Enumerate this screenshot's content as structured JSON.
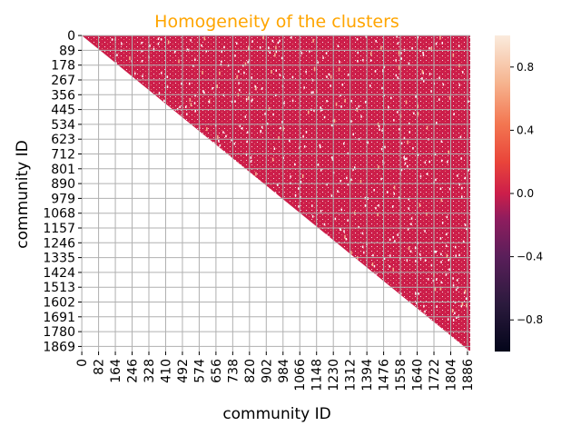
{
  "chart_data": {
    "type": "heatmap",
    "title": "Homogeneity of the clusters",
    "xlabel": "community ID",
    "ylabel": "community ID",
    "x_tick_labels": [
      "0",
      "82",
      "164",
      "246",
      "328",
      "410",
      "492",
      "574",
      "656",
      "738",
      "820",
      "902",
      "984",
      "1066",
      "1148",
      "1230",
      "1312",
      "1394",
      "1476",
      "1558",
      "1640",
      "1722",
      "1804",
      "1886"
    ],
    "y_tick_labels": [
      "0",
      "89",
      "178",
      "267",
      "356",
      "445",
      "534",
      "623",
      "712",
      "801",
      "890",
      "979",
      "1068",
      "1157",
      "1246",
      "1335",
      "1424",
      "1513",
      "1602",
      "1691",
      "1780",
      "1869"
    ],
    "n_communities": 1900,
    "matrix_shape": "upper-triangular",
    "dominant_value": 0.0,
    "grid": true,
    "colorbar": {
      "vmin": -1.0,
      "vmax": 1.0,
      "tick_labels": [
        "0.8",
        "0.4",
        "0.0",
        "−0.4",
        "−0.8"
      ],
      "tick_values": [
        0.8,
        0.4,
        0.0,
        -0.4,
        -0.8
      ],
      "colormap": "rocket"
    },
    "colors": {
      "title": "#ffa500",
      "dominant": "#cc1e4a",
      "high": "#f6b48f",
      "gap": "#ffffff"
    }
  }
}
